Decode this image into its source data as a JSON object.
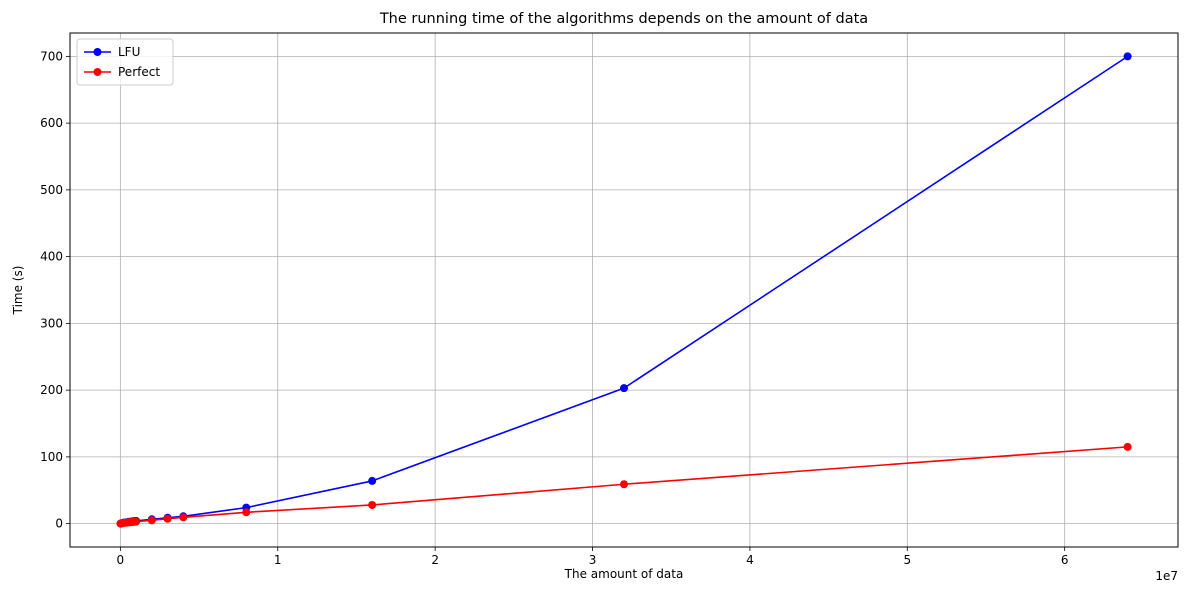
{
  "chart_data": {
    "type": "line",
    "title": "The running time of the algorithms depends on the amount of data",
    "xlabel": "The amount of data",
    "ylabel": "Time (s)",
    "x_offset_label": "1e7",
    "xlim": [
      -3200000,
      67200000
    ],
    "ylim": [
      -35,
      735
    ],
    "xticks": [
      0,
      10000000,
      20000000,
      30000000,
      40000000,
      50000000,
      60000000
    ],
    "xtick_labels": [
      "0",
      "1",
      "2",
      "3",
      "4",
      "5",
      "6"
    ],
    "yticks": [
      0,
      100,
      200,
      300,
      400,
      500,
      600,
      700
    ],
    "ytick_labels": [
      "0",
      "100",
      "200",
      "300",
      "400",
      "500",
      "600",
      "700"
    ],
    "grid": true,
    "legend_position": "top-left",
    "series": [
      {
        "name": "LFU",
        "color": "#0000ff",
        "x": [
          10000,
          100000,
          200000,
          300000,
          400000,
          500000,
          600000,
          700000,
          800000,
          900000,
          1000000,
          2000000,
          3000000,
          4000000,
          8000000,
          16000000,
          32000000,
          64000000
        ],
        "y": [
          0.1,
          0.8,
          1.3,
          1.7,
          2.1,
          2.5,
          2.9,
          3.2,
          3.5,
          3.8,
          4.1,
          6.5,
          8.8,
          11,
          24,
          64,
          203,
          700
        ]
      },
      {
        "name": "Perfect",
        "color": "#ff0000",
        "x": [
          10000,
          100000,
          200000,
          300000,
          400000,
          500000,
          600000,
          700000,
          800000,
          900000,
          1000000,
          2000000,
          3000000,
          4000000,
          8000000,
          16000000,
          32000000,
          64000000
        ],
        "y": [
          0.1,
          0.6,
          1.0,
          1.3,
          1.6,
          1.9,
          2.1,
          2.4,
          2.6,
          2.8,
          3.0,
          5.0,
          7.3,
          9.5,
          17,
          28,
          59,
          115
        ]
      }
    ]
  }
}
